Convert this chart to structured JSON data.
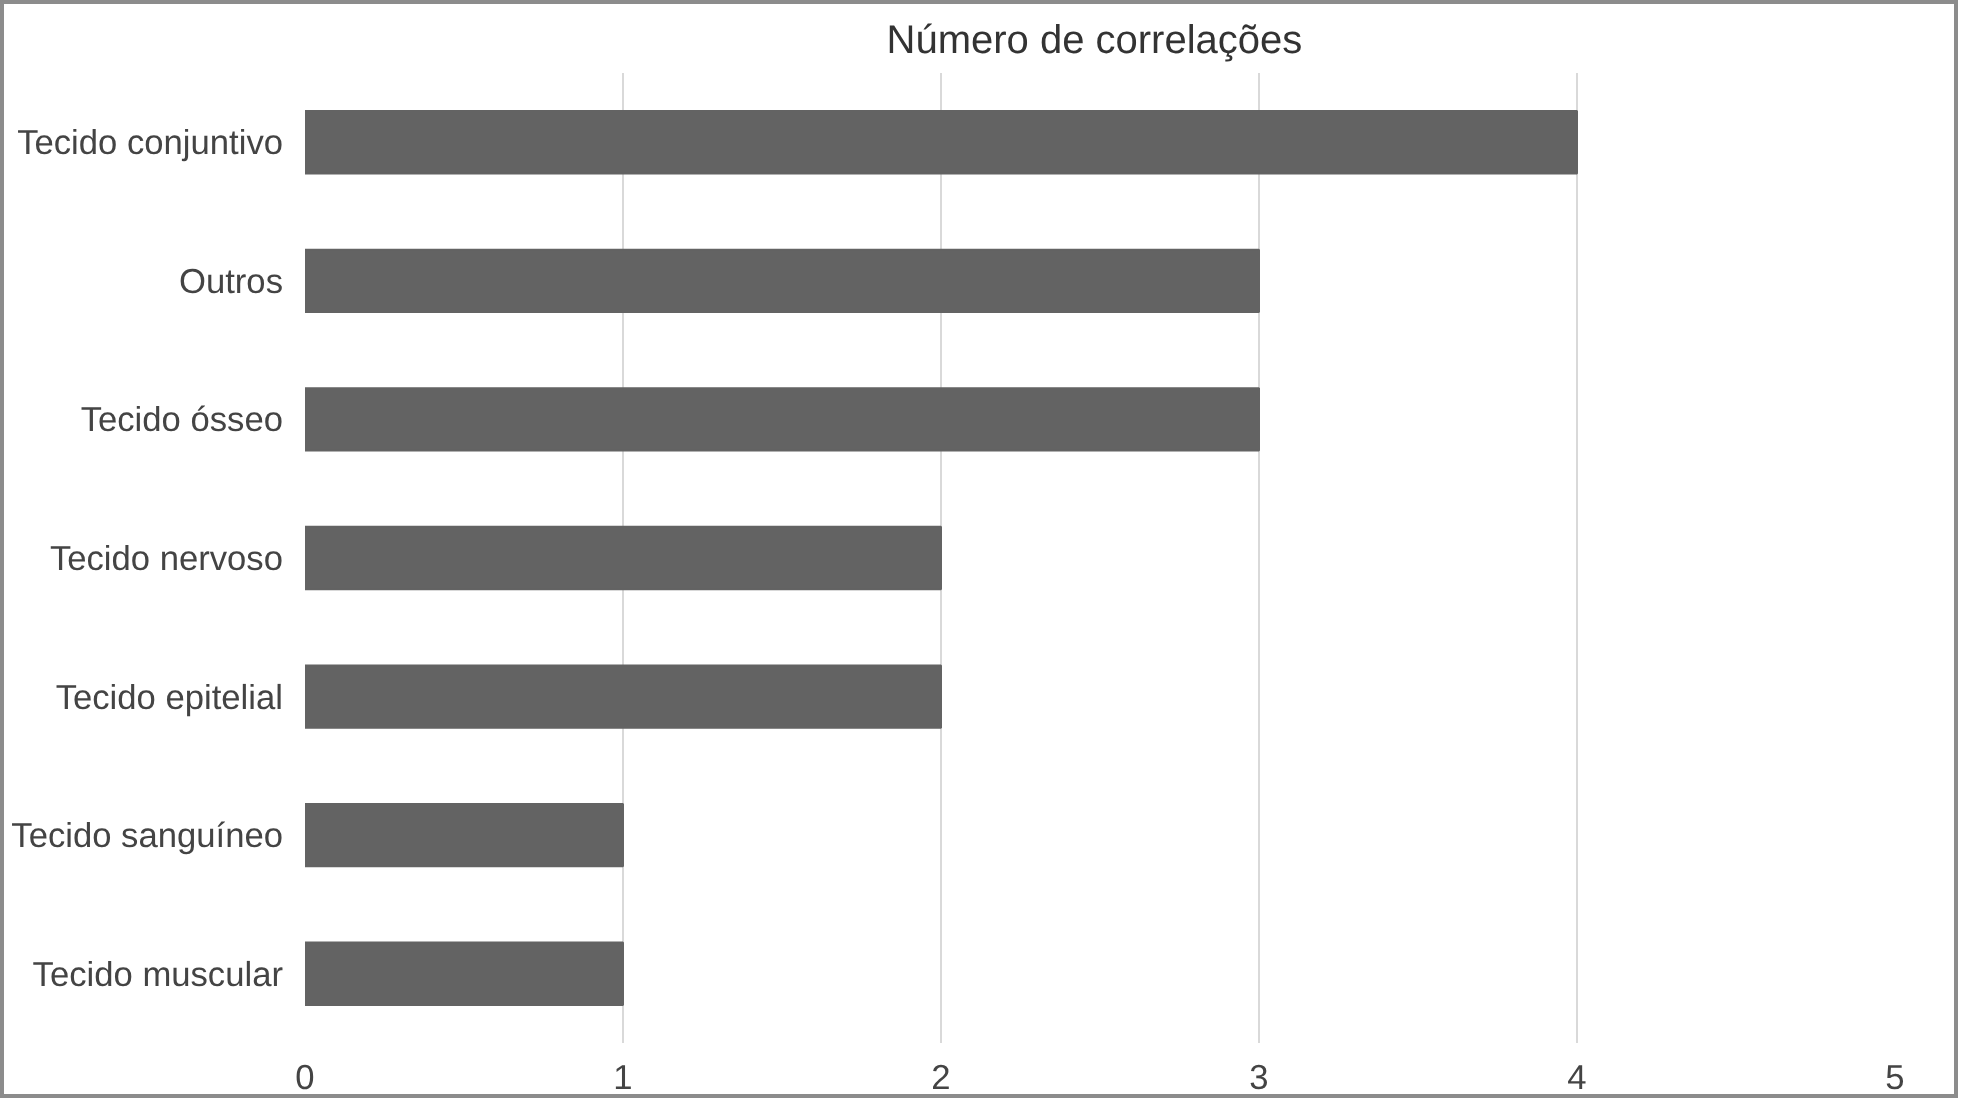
{
  "chart_data": {
    "type": "bar",
    "orientation": "horizontal",
    "title": "Número  de correlações",
    "categories": [
      "Tecido conjuntivo",
      "Outros",
      "Tecido ósseo",
      "Tecido nervoso",
      "Tecido epitelial",
      "Tecido sanguíneo",
      "Tecido muscular"
    ],
    "values": [
      4,
      3,
      3,
      2,
      2,
      1,
      1
    ],
    "color": "#636363",
    "xlim": [
      0,
      5
    ],
    "xticks": [
      0,
      1,
      2,
      3,
      4,
      5
    ],
    "grid": "x"
  }
}
